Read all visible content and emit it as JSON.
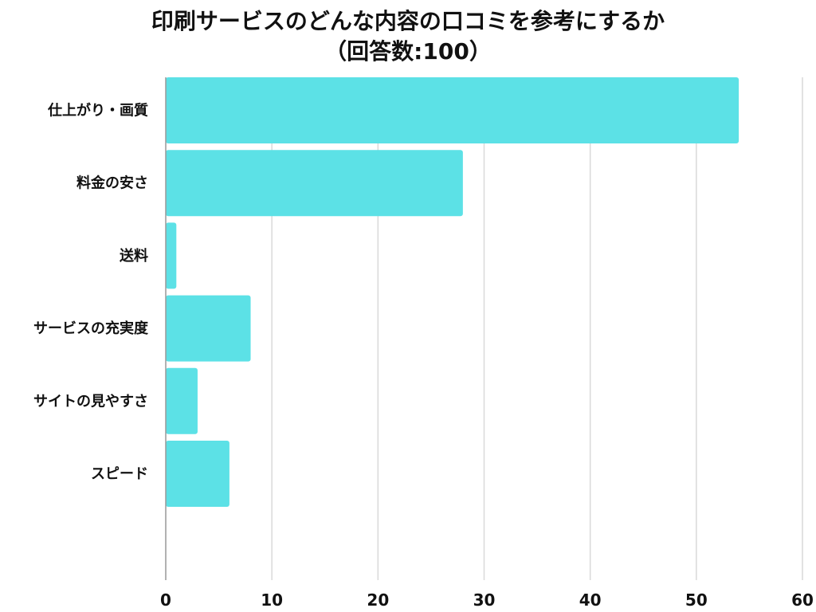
{
  "chart_data": {
    "type": "bar",
    "orientation": "horizontal",
    "title": "印刷サービスのどんな内容の口コミを参考にするか",
    "subtitle": "（回答数:100）",
    "categories": [
      "仕上がり・画質",
      "料金の安さ",
      "送料",
      "サービスの充実度",
      "サイトの見やすさ",
      "スピード"
    ],
    "values": [
      54,
      28,
      1,
      8,
      3,
      6
    ],
    "xlim": [
      0,
      60
    ],
    "xticks": [
      0,
      10,
      20,
      30,
      40,
      50,
      60
    ],
    "xlabel": "",
    "ylabel": "",
    "grid": "vertical",
    "bar_color": "#5ce1e6",
    "grid_color": "#d9d9d9",
    "axis_color": "#999999"
  }
}
